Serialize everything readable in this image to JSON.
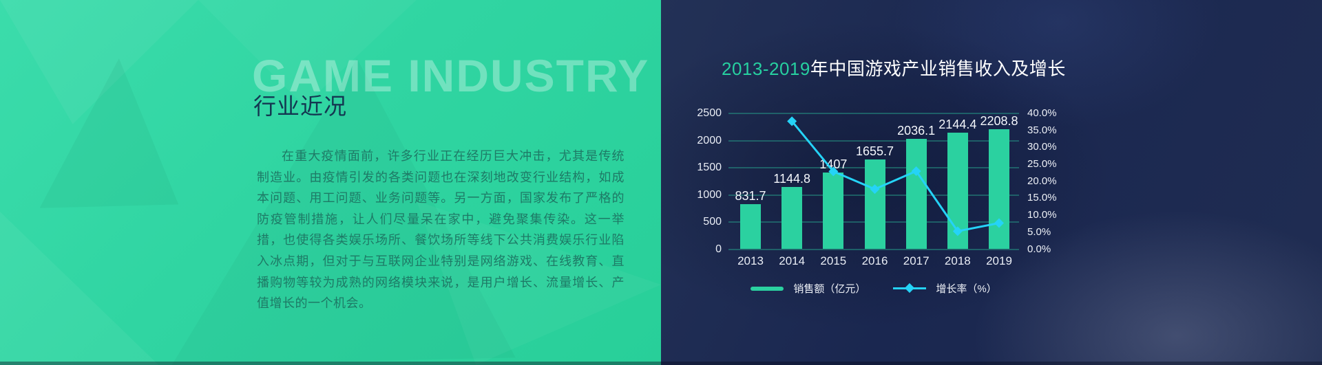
{
  "left_panel": {
    "watermark": "GAME INDUSTRY",
    "heading": "行业近况",
    "paragraph": "在重大疫情面前，许多行业正在经历巨大冲击，尤其是传统制造业。由疫情引发的各类问题也在深刻地改变行业结构，如成本问题、用工问题、业务问题等。另一方面，国家发布了严格的防疫管制措施，让人们尽量呆在家中，避免聚集传染。这一举措，也使得各类娱乐场所、餐饮场所等线下公共消费娱乐行业陷入冰点期，但对于与互联网企业特别是网络游戏、在线教育、直播购物等较为成熟的网络模块来说，是用户增长、流量增长、产值增长的一个机会。"
  },
  "right_panel": {
    "title_highlight": "2013-2019",
    "title_rest": "年中国游戏产业销售收入及增长"
  },
  "chart_data": {
    "type": "bar",
    "subtype": "combo-bar-line-dual-axis",
    "title": "2013-2019年中国游戏产业销售收入及增长",
    "categories": [
      "2013",
      "2014",
      "2015",
      "2016",
      "2017",
      "2018",
      "2019"
    ],
    "series": [
      {
        "name": "销售额（亿元）",
        "type": "bar",
        "axis": "left",
        "color": "#2bd1a0",
        "values": [
          831.7,
          1144.8,
          1407,
          1655.7,
          2036.1,
          2144.4,
          2208.8
        ],
        "labels": [
          "831.7",
          "1144.8",
          "1407",
          "1655.7",
          "2036.1",
          "2144.4",
          "2208.8"
        ]
      },
      {
        "name": "增长率（%）",
        "type": "line",
        "axis": "right",
        "color": "#25d3f7",
        "marker": "diamond",
        "values": [
          null,
          37.7,
          22.9,
          17.7,
          23.0,
          5.3,
          7.7
        ]
      }
    ],
    "left_axis": {
      "min": 0,
      "max": 2500,
      "ticks": [
        "2500",
        "2000",
        "1500",
        "1000",
        "500",
        "0"
      ]
    },
    "right_axis": {
      "min": 0,
      "max": 40,
      "ticks": [
        "40.0%",
        "35.0%",
        "30.0%",
        "25.0%",
        "20.0%",
        "15.0%",
        "10.0%",
        "5.0%",
        "0.0%"
      ]
    },
    "grid": true,
    "legend_position": "bottom",
    "legend": [
      {
        "label": "销售额（亿元）",
        "color": "#2bd1a0",
        "marker": "bar"
      },
      {
        "label": "增长率（%）",
        "color": "#25d3f7",
        "marker": "line-diamond"
      }
    ]
  },
  "colors": {
    "left_background": "#30d5a2",
    "right_background": "#1a2750",
    "accent_green": "#2bd1a0",
    "accent_cyan": "#25d3f7",
    "heading_text": "#143751",
    "paragraph_text": "#1e7a66",
    "gridline": "#28aa91"
  }
}
